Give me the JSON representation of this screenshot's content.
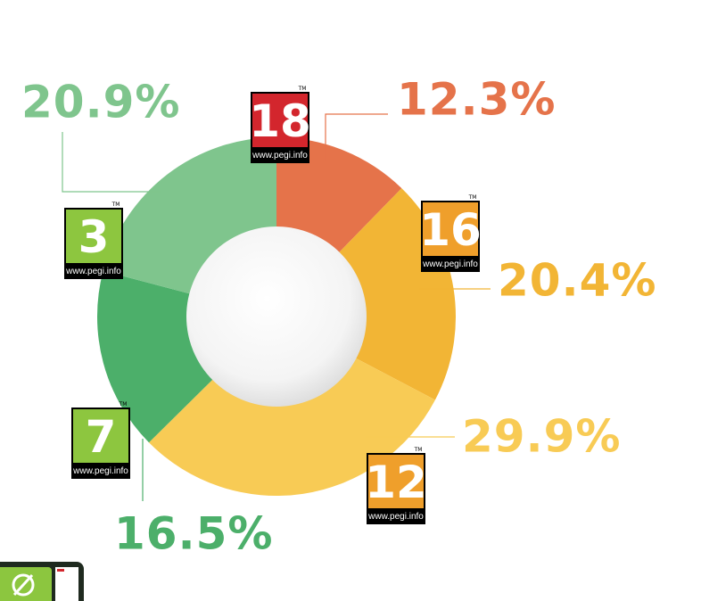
{
  "chart_data": {
    "type": "donut",
    "categories": [
      "18",
      "16",
      "12",
      "7",
      "3"
    ],
    "values": [
      12.3,
      20.4,
      29.9,
      16.5,
      20.9
    ],
    "value_labels": [
      "12.3%",
      "20.4%",
      "29.9%",
      "16.5%",
      "20.9%"
    ],
    "colors": [
      "#e5734a",
      "#f2b535",
      "#f8cb55",
      "#4caf6a",
      "#7fc58d"
    ],
    "badge_colors": [
      "#d3262d",
      "#ef9f2b",
      "#ef9f2b",
      "#8dc63f",
      "#8dc63f"
    ],
    "badge_caption": "www.pegi.info",
    "badge_mark": "TM"
  }
}
